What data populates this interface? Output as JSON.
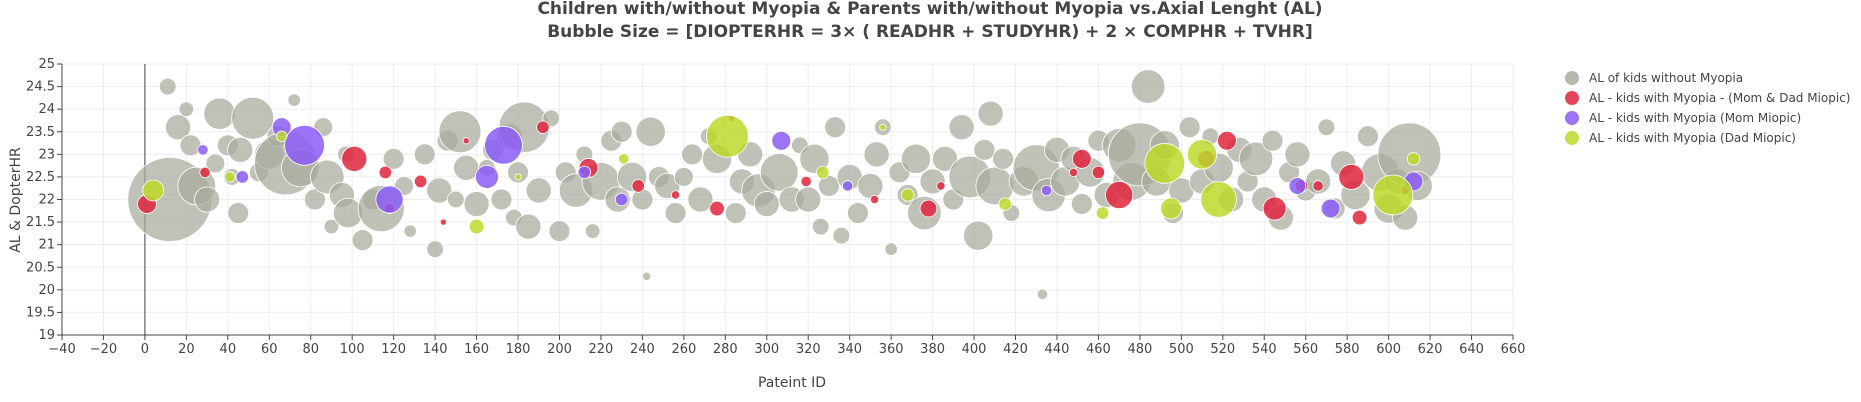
{
  "chart_data": {
    "type": "scatter",
    "title_line1": "Children with/without Myopia & Parents with/without Myopia vs.Axial Lenght (AL)",
    "title_line2": "Bubble Size = [DIOPTERHR = 3× ( READHR + STUDYHR) + 2 × COMPHR + TVHR]",
    "xlabel": "Pateint ID",
    "ylabel": "AL & DopterHR",
    "xlim": [
      -40,
      660
    ],
    "ylim": [
      19,
      25
    ],
    "x_ticks": [
      "−40",
      "−20",
      "0",
      "20",
      "40",
      "60",
      "80",
      "100",
      "120",
      "140",
      "160",
      "180",
      "200",
      "220",
      "240",
      "260",
      "280",
      "300",
      "320",
      "340",
      "360",
      "380",
      "400",
      "420",
      "440",
      "460",
      "480",
      "500",
      "520",
      "540",
      "560",
      "580",
      "600",
      "620",
      "640",
      "660"
    ],
    "y_ticks": [
      "19",
      "19.5",
      "20",
      "20.5",
      "21",
      "21.5",
      "22",
      "22.5",
      "23",
      "23.5",
      "24",
      "24.5",
      "25"
    ],
    "grid": true,
    "legend_position": "top-right",
    "series": [
      {
        "name": "AL of kids without Myopia",
        "color": "#a8ab9c",
        "points": [
          [
            12,
            22.0,
            40
          ],
          [
            11,
            24.5,
            8
          ],
          [
            16,
            23.6,
            12
          ],
          [
            20,
            24.0,
            7
          ],
          [
            22,
            23.2,
            10
          ],
          [
            25,
            22.3,
            18
          ],
          [
            30,
            22.0,
            12
          ],
          [
            34,
            22.8,
            9
          ],
          [
            36,
            23.9,
            15
          ],
          [
            40,
            23.2,
            10
          ],
          [
            42,
            22.5,
            8
          ],
          [
            45,
            21.7,
            10
          ],
          [
            46,
            23.1,
            12
          ],
          [
            52,
            23.8,
            20
          ],
          [
            55,
            22.6,
            9
          ],
          [
            60,
            23.0,
            14
          ],
          [
            64,
            23.4,
            10
          ],
          [
            68,
            22.8,
            30
          ],
          [
            72,
            24.2,
            6
          ],
          [
            75,
            22.7,
            18
          ],
          [
            82,
            22.0,
            10
          ],
          [
            86,
            23.6,
            9
          ],
          [
            88,
            22.5,
            16
          ],
          [
            90,
            21.4,
            7
          ],
          [
            95,
            22.1,
            12
          ],
          [
            97,
            23.0,
            8
          ],
          [
            98,
            21.7,
            14
          ],
          [
            105,
            21.1,
            10
          ],
          [
            110,
            22.0,
            10
          ],
          [
            114,
            21.8,
            22
          ],
          [
            120,
            22.9,
            10
          ],
          [
            125,
            22.3,
            9
          ],
          [
            128,
            21.3,
            6
          ],
          [
            135,
            23.0,
            10
          ],
          [
            140,
            20.9,
            8
          ],
          [
            142,
            22.2,
            12
          ],
          [
            146,
            23.3,
            10
          ],
          [
            150,
            22.0,
            8
          ],
          [
            152,
            23.5,
            20
          ],
          [
            155,
            22.7,
            12
          ],
          [
            160,
            21.9,
            12
          ],
          [
            165,
            22.7,
            8
          ],
          [
            168,
            23.1,
            10
          ],
          [
            172,
            22.0,
            10
          ],
          [
            176,
            23.4,
            12
          ],
          [
            178,
            21.6,
            8
          ],
          [
            180,
            22.6,
            10
          ],
          [
            183,
            23.6,
            24
          ],
          [
            185,
            21.4,
            12
          ],
          [
            190,
            22.2,
            12
          ],
          [
            196,
            23.8,
            8
          ],
          [
            200,
            21.3,
            10
          ],
          [
            203,
            22.6,
            10
          ],
          [
            208,
            22.2,
            16
          ],
          [
            212,
            23.0,
            8
          ],
          [
            216,
            21.3,
            7
          ],
          [
            220,
            22.4,
            18
          ],
          [
            225,
            23.3,
            10
          ],
          [
            228,
            22.0,
            12
          ],
          [
            230,
            23.5,
            10
          ],
          [
            235,
            22.5,
            14
          ],
          [
            240,
            22.0,
            10
          ],
          [
            242,
            20.3,
            4
          ],
          [
            244,
            23.5,
            14
          ],
          [
            248,
            22.5,
            10
          ],
          [
            252,
            22.3,
            12
          ],
          [
            256,
            21.7,
            10
          ],
          [
            260,
            22.5,
            9
          ],
          [
            264,
            23.0,
            10
          ],
          [
            268,
            22.0,
            12
          ],
          [
            272,
            23.4,
            8
          ],
          [
            276,
            22.9,
            14
          ],
          [
            285,
            21.7,
            10
          ],
          [
            288,
            22.4,
            12
          ],
          [
            292,
            23.0,
            12
          ],
          [
            296,
            22.2,
            16
          ],
          [
            300,
            21.9,
            12
          ],
          [
            306,
            22.6,
            18
          ],
          [
            312,
            22.0,
            12
          ],
          [
            316,
            23.2,
            8
          ],
          [
            320,
            22.0,
            12
          ],
          [
            323,
            22.9,
            14
          ],
          [
            326,
            21.4,
            8
          ],
          [
            330,
            22.3,
            10
          ],
          [
            333,
            23.6,
            10
          ],
          [
            336,
            21.2,
            8
          ],
          [
            340,
            22.5,
            12
          ],
          [
            344,
            21.7,
            10
          ],
          [
            350,
            22.3,
            12
          ],
          [
            353,
            23.0,
            12
          ],
          [
            356,
            23.6,
            8
          ],
          [
            360,
            20.9,
            6
          ],
          [
            364,
            22.6,
            10
          ],
          [
            368,
            22.1,
            10
          ],
          [
            372,
            22.9,
            14
          ],
          [
            376,
            21.7,
            16
          ],
          [
            380,
            22.4,
            12
          ],
          [
            386,
            22.9,
            12
          ],
          [
            390,
            22.0,
            10
          ],
          [
            394,
            23.6,
            12
          ],
          [
            398,
            22.5,
            20
          ],
          [
            402,
            21.2,
            14
          ],
          [
            405,
            23.1,
            10
          ],
          [
            408,
            23.9,
            12
          ],
          [
            410,
            22.3,
            18
          ],
          [
            414,
            22.9,
            10
          ],
          [
            418,
            21.7,
            8
          ],
          [
            424,
            22.4,
            14
          ],
          [
            430,
            22.7,
            22
          ],
          [
            433,
            19.9,
            5
          ],
          [
            436,
            22.1,
            16
          ],
          [
            440,
            23.1,
            12
          ],
          [
            444,
            22.4,
            14
          ],
          [
            448,
            22.9,
            12
          ],
          [
            452,
            21.9,
            10
          ],
          [
            456,
            22.6,
            14
          ],
          [
            460,
            23.3,
            10
          ],
          [
            464,
            22.1,
            12
          ],
          [
            470,
            23.2,
            16
          ],
          [
            476,
            22.4,
            18
          ],
          [
            480,
            23.0,
            30
          ],
          [
            484,
            24.5,
            16
          ],
          [
            488,
            22.4,
            14
          ],
          [
            492,
            23.2,
            14
          ],
          [
            496,
            21.7,
            10
          ],
          [
            500,
            22.2,
            12
          ],
          [
            504,
            23.6,
            10
          ],
          [
            510,
            22.4,
            12
          ],
          [
            514,
            23.4,
            8
          ],
          [
            518,
            22.7,
            14
          ],
          [
            524,
            22.0,
            12
          ],
          [
            528,
            23.1,
            12
          ],
          [
            532,
            22.4,
            10
          ],
          [
            536,
            22.9,
            16
          ],
          [
            540,
            22.0,
            12
          ],
          [
            544,
            23.3,
            10
          ],
          [
            548,
            21.6,
            12
          ],
          [
            552,
            22.6,
            10
          ],
          [
            556,
            23.0,
            12
          ],
          [
            560,
            22.2,
            10
          ],
          [
            566,
            22.4,
            12
          ],
          [
            570,
            23.6,
            8
          ],
          [
            574,
            21.8,
            10
          ],
          [
            578,
            22.8,
            12
          ],
          [
            584,
            22.1,
            14
          ],
          [
            590,
            23.4,
            10
          ],
          [
            596,
            22.6,
            18
          ],
          [
            600,
            21.8,
            14
          ],
          [
            604,
            22.4,
            12
          ],
          [
            608,
            21.6,
            12
          ],
          [
            610,
            23.0,
            30
          ],
          [
            614,
            22.3,
            14
          ]
        ]
      },
      {
        "name": "AL - kids with Myopia - (Mom & Dad Miopic)",
        "color": "#e0243c",
        "points": [
          [
            1,
            21.9,
            9
          ],
          [
            29,
            22.6,
            5
          ],
          [
            101,
            22.9,
            12
          ],
          [
            116,
            22.6,
            6
          ],
          [
            118,
            21.8,
            5
          ],
          [
            133,
            22.4,
            6
          ],
          [
            144,
            21.5,
            3
          ],
          [
            155,
            23.3,
            3
          ],
          [
            192,
            23.6,
            6
          ],
          [
            214,
            22.7,
            9
          ],
          [
            238,
            22.3,
            6
          ],
          [
            256,
            22.1,
            4
          ],
          [
            276,
            21.8,
            7
          ],
          [
            283,
            23.8,
            3
          ],
          [
            319,
            22.4,
            5
          ],
          [
            352,
            22.0,
            4
          ],
          [
            378,
            21.8,
            8
          ],
          [
            384,
            22.3,
            4
          ],
          [
            448,
            22.6,
            4
          ],
          [
            452,
            22.9,
            9
          ],
          [
            460,
            22.6,
            6
          ],
          [
            470,
            22.1,
            13
          ],
          [
            512,
            22.9,
            8
          ],
          [
            522,
            23.3,
            9
          ],
          [
            545,
            21.8,
            11
          ],
          [
            558,
            22.3,
            6
          ],
          [
            566,
            22.3,
            5
          ],
          [
            582,
            22.5,
            12
          ],
          [
            586,
            21.6,
            7
          ],
          [
            608,
            22.2,
            4
          ]
        ]
      },
      {
        "name": "AL - kids with Myopia (Mom Miopic)",
        "color": "#8b5cf6",
        "points": [
          [
            28,
            23.1,
            5
          ],
          [
            47,
            22.5,
            6
          ],
          [
            66,
            23.6,
            9
          ],
          [
            77,
            23.2,
            19
          ],
          [
            118,
            22.0,
            13
          ],
          [
            165,
            22.5,
            11
          ],
          [
            173,
            23.2,
            18
          ],
          [
            212,
            22.6,
            6
          ],
          [
            230,
            22.0,
            6
          ],
          [
            307,
            23.3,
            9
          ],
          [
            339,
            22.3,
            5
          ],
          [
            435,
            22.2,
            5
          ],
          [
            556,
            22.3,
            8
          ],
          [
            572,
            21.8,
            9
          ],
          [
            612,
            22.4,
            9
          ]
        ]
      },
      {
        "name": "AL -  kids with Myopia (Dad Miopic)",
        "color": "#bcd92a",
        "points": [
          [
            4,
            22.2,
            10
          ],
          [
            41,
            22.5,
            5
          ],
          [
            66,
            23.4,
            5
          ],
          [
            160,
            21.4,
            7
          ],
          [
            180,
            22.5,
            3
          ],
          [
            231,
            22.9,
            5
          ],
          [
            281,
            23.4,
            20
          ],
          [
            327,
            22.6,
            6
          ],
          [
            356,
            23.6,
            3
          ],
          [
            368,
            22.1,
            6
          ],
          [
            415,
            21.9,
            6
          ],
          [
            462,
            21.7,
            6
          ],
          [
            492,
            22.8,
            19
          ],
          [
            495,
            21.8,
            10
          ],
          [
            510,
            23.0,
            14
          ],
          [
            518,
            22.0,
            17
          ],
          [
            602,
            22.1,
            19
          ],
          [
            612,
            22.9,
            6
          ]
        ]
      }
    ]
  }
}
